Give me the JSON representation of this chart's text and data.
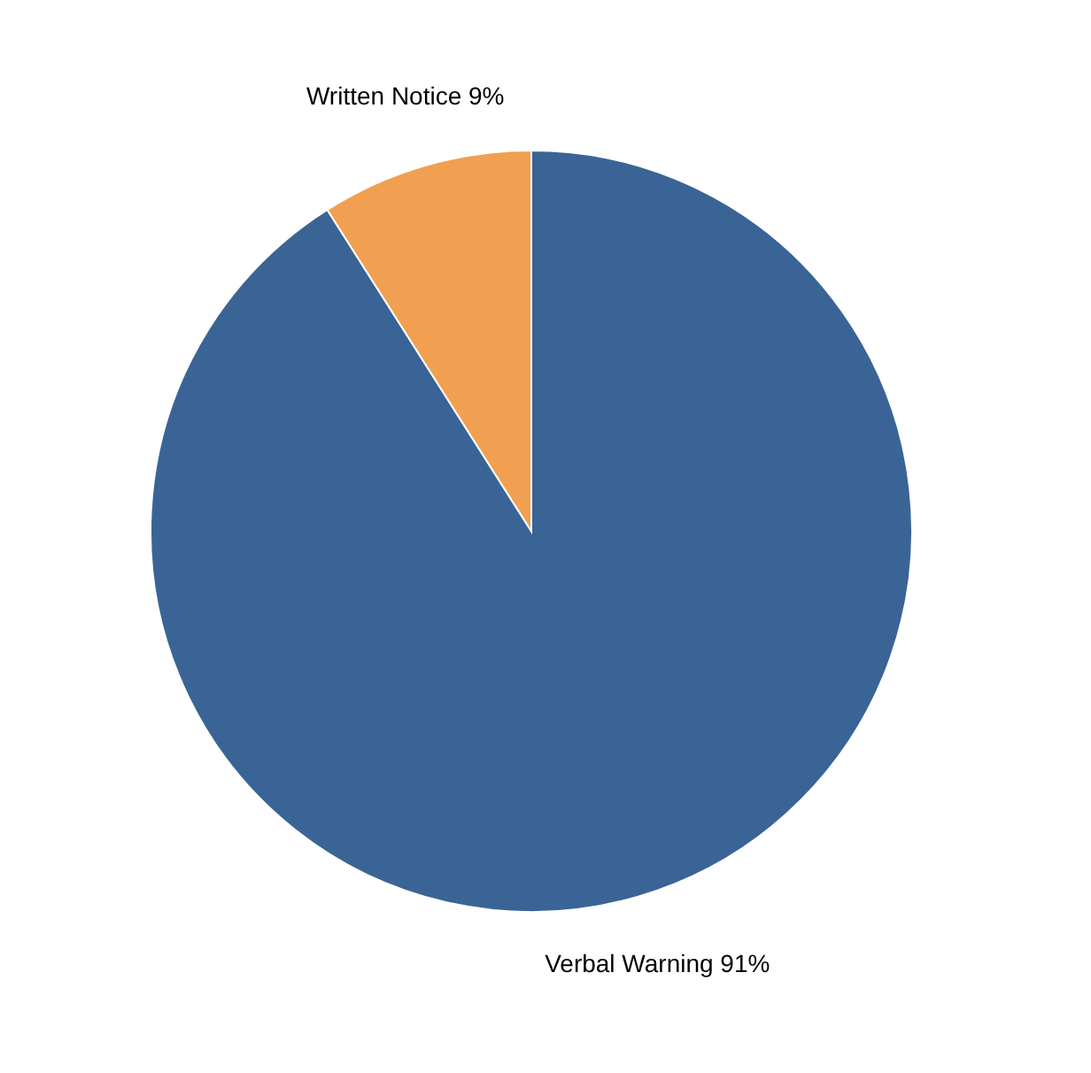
{
  "chart_data": {
    "type": "pie",
    "categories": [
      "Verbal Warning",
      "Written Notice"
    ],
    "values": [
      91,
      9
    ],
    "colors": [
      "#3a6496",
      "#f0a050"
    ],
    "value_labels": [
      "91%",
      "9%"
    ],
    "legend": false
  }
}
